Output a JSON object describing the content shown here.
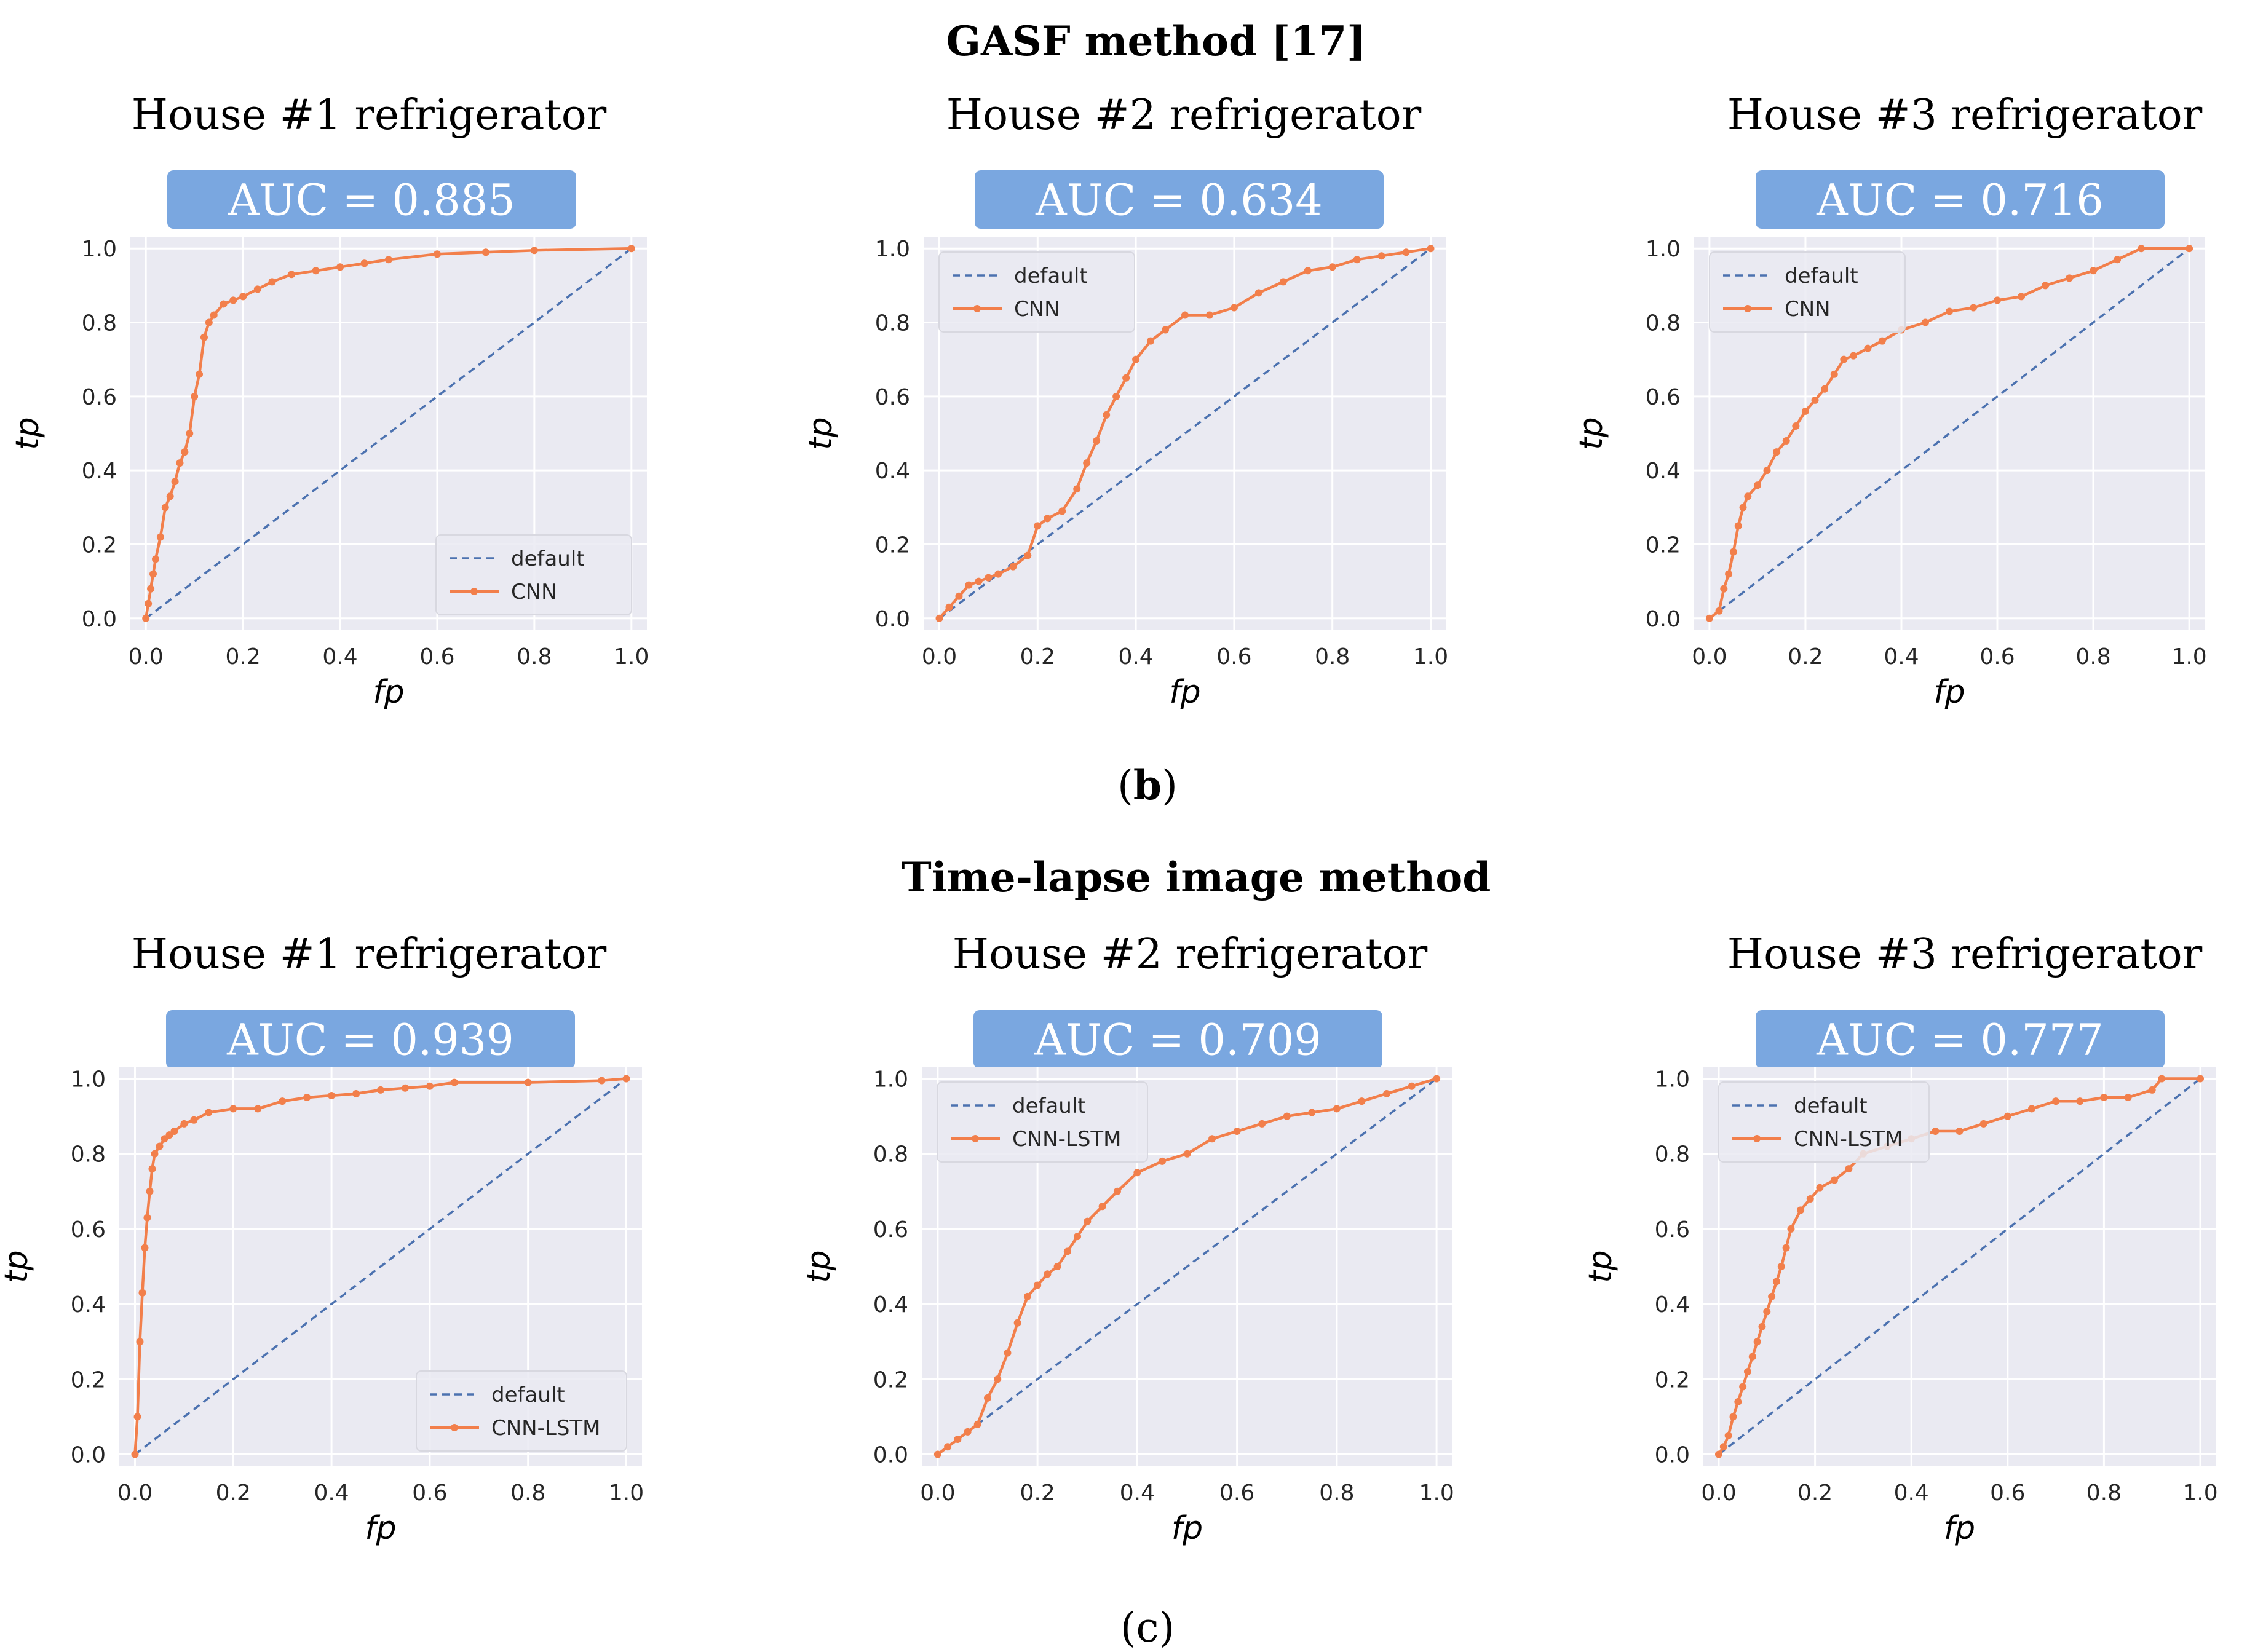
{
  "sections": [
    {
      "title": "GASF method [17]",
      "caption_open": "(",
      "caption_letter": "b",
      "caption_close": ")",
      "caption_bold": true
    },
    {
      "title": "Time-lapse image method",
      "caption_open": "(",
      "caption_letter": "c",
      "caption_close": ")",
      "caption_bold": false
    }
  ],
  "colors": {
    "plot_bg": "#eaeaf2",
    "grid": "#ffffff",
    "default_line": "#4c72b0",
    "model_line": "#f27f4b",
    "badge_bg": "#7aa7e0",
    "badge_text": "#ffffff",
    "text": "#000000",
    "tick_text": "#262626"
  },
  "chart_data": [
    {
      "type": "line",
      "group": "GASF method [17]",
      "title": "House #1 refrigerator",
      "auc_label": "AUC = 0.885",
      "xlabel": "fp",
      "ylabel": "tp",
      "xlim": [
        0,
        1
      ],
      "ylim": [
        0,
        1
      ],
      "ticks": [
        "0.0",
        "0.2",
        "0.4",
        "0.6",
        "0.8",
        "1.0"
      ],
      "legend_position": "lower-right",
      "grid": true,
      "series": [
        {
          "name": "default",
          "style": "dashed",
          "x": [
            0,
            1
          ],
          "y": [
            0,
            1
          ]
        },
        {
          "name": "CNN",
          "style": "solid-marker",
          "x": [
            0,
            0.005,
            0.01,
            0.015,
            0.02,
            0.03,
            0.04,
            0.05,
            0.06,
            0.07,
            0.08,
            0.09,
            0.1,
            0.11,
            0.12,
            0.13,
            0.14,
            0.16,
            0.18,
            0.2,
            0.23,
            0.26,
            0.3,
            0.35,
            0.4,
            0.45,
            0.5,
            0.6,
            0.7,
            0.8,
            1.0
          ],
          "y": [
            0,
            0.04,
            0.08,
            0.12,
            0.16,
            0.22,
            0.3,
            0.33,
            0.37,
            0.42,
            0.45,
            0.5,
            0.6,
            0.66,
            0.76,
            0.8,
            0.82,
            0.85,
            0.86,
            0.87,
            0.89,
            0.91,
            0.93,
            0.94,
            0.95,
            0.96,
            0.97,
            0.985,
            0.99,
            0.995,
            1.0
          ]
        }
      ]
    },
    {
      "type": "line",
      "group": "GASF method [17]",
      "title": "House #2 refrigerator",
      "auc_label": "AUC = 0.634",
      "xlabel": "fp",
      "ylabel": "tp",
      "xlim": [
        0,
        1
      ],
      "ylim": [
        0,
        1
      ],
      "ticks": [
        "0.0",
        "0.2",
        "0.4",
        "0.6",
        "0.8",
        "1.0"
      ],
      "legend_position": "upper-left",
      "grid": true,
      "series": [
        {
          "name": "default",
          "style": "dashed",
          "x": [
            0,
            1
          ],
          "y": [
            0,
            1
          ]
        },
        {
          "name": "CNN",
          "style": "solid-marker",
          "x": [
            0,
            0.02,
            0.04,
            0.06,
            0.08,
            0.1,
            0.12,
            0.15,
            0.18,
            0.2,
            0.22,
            0.25,
            0.28,
            0.3,
            0.32,
            0.34,
            0.36,
            0.38,
            0.4,
            0.43,
            0.46,
            0.5,
            0.55,
            0.6,
            0.65,
            0.7,
            0.75,
            0.8,
            0.85,
            0.9,
            0.95,
            1.0
          ],
          "y": [
            0,
            0.03,
            0.06,
            0.09,
            0.1,
            0.11,
            0.12,
            0.14,
            0.17,
            0.25,
            0.27,
            0.29,
            0.35,
            0.42,
            0.48,
            0.55,
            0.6,
            0.65,
            0.7,
            0.75,
            0.78,
            0.82,
            0.82,
            0.84,
            0.88,
            0.91,
            0.94,
            0.95,
            0.97,
            0.98,
            0.99,
            1.0
          ]
        }
      ]
    },
    {
      "type": "line",
      "group": "GASF method [17]",
      "title": "House #3 refrigerator",
      "auc_label": "AUC = 0.716",
      "xlabel": "fp",
      "ylabel": "tp",
      "xlim": [
        0,
        1
      ],
      "ylim": [
        0,
        1
      ],
      "ticks": [
        "0.0",
        "0.2",
        "0.4",
        "0.6",
        "0.8",
        "1.0"
      ],
      "legend_position": "upper-left",
      "grid": true,
      "series": [
        {
          "name": "default",
          "style": "dashed",
          "x": [
            0,
            1
          ],
          "y": [
            0,
            1
          ]
        },
        {
          "name": "CNN",
          "style": "solid-marker",
          "x": [
            0,
            0.02,
            0.03,
            0.04,
            0.05,
            0.06,
            0.07,
            0.08,
            0.1,
            0.12,
            0.14,
            0.16,
            0.18,
            0.2,
            0.22,
            0.24,
            0.26,
            0.28,
            0.3,
            0.33,
            0.36,
            0.4,
            0.45,
            0.5,
            0.55,
            0.6,
            0.65,
            0.7,
            0.75,
            0.8,
            0.85,
            0.9,
            1.0
          ],
          "y": [
            0,
            0.02,
            0.08,
            0.12,
            0.18,
            0.25,
            0.3,
            0.33,
            0.36,
            0.4,
            0.45,
            0.48,
            0.52,
            0.56,
            0.59,
            0.62,
            0.66,
            0.7,
            0.71,
            0.73,
            0.75,
            0.78,
            0.8,
            0.83,
            0.84,
            0.86,
            0.87,
            0.9,
            0.92,
            0.94,
            0.97,
            1.0,
            1.0
          ]
        }
      ]
    },
    {
      "type": "line",
      "group": "Time-lapse image method",
      "title": "House #1 refrigerator",
      "auc_label": "AUC = 0.939",
      "xlabel": "fp",
      "ylabel": "tp",
      "xlim": [
        0,
        1
      ],
      "ylim": [
        0,
        1
      ],
      "ticks": [
        "0.0",
        "0.2",
        "0.4",
        "0.6",
        "0.8",
        "1.0"
      ],
      "legend_position": "lower-right",
      "grid": true,
      "series": [
        {
          "name": "default",
          "style": "dashed",
          "x": [
            0,
            1
          ],
          "y": [
            0,
            1
          ]
        },
        {
          "name": "CNN-LSTM",
          "style": "solid-marker",
          "x": [
            0,
            0.005,
            0.01,
            0.015,
            0.02,
            0.025,
            0.03,
            0.035,
            0.04,
            0.05,
            0.06,
            0.07,
            0.08,
            0.1,
            0.12,
            0.15,
            0.2,
            0.25,
            0.3,
            0.35,
            0.4,
            0.45,
            0.5,
            0.55,
            0.6,
            0.65,
            0.8,
            0.95,
            1.0
          ],
          "y": [
            0,
            0.1,
            0.3,
            0.43,
            0.55,
            0.63,
            0.7,
            0.76,
            0.8,
            0.82,
            0.84,
            0.85,
            0.86,
            0.88,
            0.89,
            0.91,
            0.92,
            0.92,
            0.94,
            0.95,
            0.955,
            0.96,
            0.97,
            0.975,
            0.98,
            0.99,
            0.99,
            0.995,
            1.0
          ]
        }
      ]
    },
    {
      "type": "line",
      "group": "Time-lapse image method",
      "title": "House #2 refrigerator",
      "auc_label": "AUC = 0.709",
      "xlabel": "fp",
      "ylabel": "tp",
      "xlim": [
        0,
        1
      ],
      "ylim": [
        0,
        1
      ],
      "ticks": [
        "0.0",
        "0.2",
        "0.4",
        "0.6",
        "0.8",
        "1.0"
      ],
      "legend_position": "upper-left",
      "grid": true,
      "series": [
        {
          "name": "default",
          "style": "dashed",
          "x": [
            0,
            1
          ],
          "y": [
            0,
            1
          ]
        },
        {
          "name": "CNN-LSTM",
          "style": "solid-marker",
          "x": [
            0,
            0.02,
            0.04,
            0.06,
            0.08,
            0.1,
            0.12,
            0.14,
            0.16,
            0.18,
            0.2,
            0.22,
            0.24,
            0.26,
            0.28,
            0.3,
            0.33,
            0.36,
            0.4,
            0.45,
            0.5,
            0.55,
            0.6,
            0.65,
            0.7,
            0.75,
            0.8,
            0.85,
            0.9,
            0.95,
            1.0
          ],
          "y": [
            0,
            0.02,
            0.04,
            0.06,
            0.08,
            0.15,
            0.2,
            0.27,
            0.35,
            0.42,
            0.45,
            0.48,
            0.5,
            0.54,
            0.58,
            0.62,
            0.66,
            0.7,
            0.75,
            0.78,
            0.8,
            0.84,
            0.86,
            0.88,
            0.9,
            0.91,
            0.92,
            0.94,
            0.96,
            0.98,
            1.0
          ]
        }
      ]
    },
    {
      "type": "line",
      "group": "Time-lapse image method",
      "title": "House #3 refrigerator",
      "auc_label": "AUC = 0.777",
      "xlabel": "fp",
      "ylabel": "tp",
      "xlim": [
        0,
        1
      ],
      "ylim": [
        0,
        1
      ],
      "ticks": [
        "0.0",
        "0.2",
        "0.4",
        "0.6",
        "0.8",
        "1.0"
      ],
      "legend_position": "upper-left",
      "grid": true,
      "series": [
        {
          "name": "default",
          "style": "dashed",
          "x": [
            0,
            1
          ],
          "y": [
            0,
            1
          ]
        },
        {
          "name": "CNN-LSTM",
          "style": "solid-marker",
          "x": [
            0,
            0.01,
            0.02,
            0.03,
            0.04,
            0.05,
            0.06,
            0.07,
            0.08,
            0.09,
            0.1,
            0.11,
            0.12,
            0.13,
            0.14,
            0.15,
            0.17,
            0.19,
            0.21,
            0.24,
            0.27,
            0.3,
            0.35,
            0.4,
            0.45,
            0.5,
            0.55,
            0.6,
            0.65,
            0.7,
            0.75,
            0.8,
            0.85,
            0.9,
            0.92,
            1.0
          ],
          "y": [
            0,
            0.02,
            0.05,
            0.1,
            0.14,
            0.18,
            0.22,
            0.26,
            0.3,
            0.34,
            0.38,
            0.42,
            0.46,
            0.5,
            0.55,
            0.6,
            0.65,
            0.68,
            0.71,
            0.73,
            0.76,
            0.8,
            0.82,
            0.84,
            0.86,
            0.86,
            0.88,
            0.9,
            0.92,
            0.94,
            0.94,
            0.95,
            0.95,
            0.97,
            1.0,
            1.0
          ]
        }
      ]
    }
  ]
}
